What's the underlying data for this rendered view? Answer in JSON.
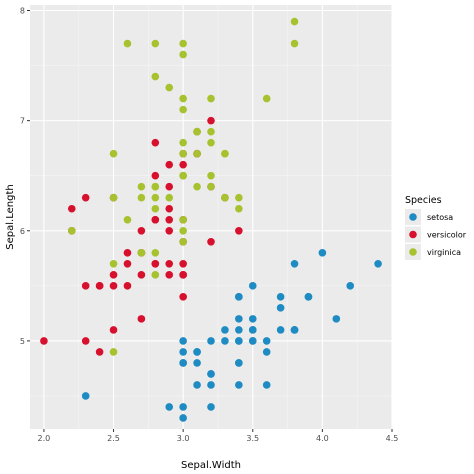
{
  "chart_data": {
    "type": "scatter",
    "xlabel": "Sepal.Width",
    "ylabel": "Sepal.Length",
    "xlim": [
      1.9,
      4.5
    ],
    "ylim": [
      4.2,
      8.05
    ],
    "x_ticks": [
      2.0,
      2.5,
      3.0,
      3.5,
      4.0,
      4.5
    ],
    "x_tick_labels": [
      "2.0",
      "2.5",
      "3.0",
      "3.5",
      "4.0",
      "4.5"
    ],
    "y_ticks": [
      5,
      6,
      7,
      8
    ],
    "y_tick_labels": [
      "5",
      "6",
      "7",
      "8"
    ],
    "grid": true,
    "legend_title": "Species",
    "legend_position": "right",
    "series": [
      {
        "name": "setosa",
        "color": "#1f8bc3",
        "points": [
          [
            3.5,
            5.1
          ],
          [
            3.0,
            4.9
          ],
          [
            3.2,
            4.7
          ],
          [
            3.1,
            4.6
          ],
          [
            3.6,
            5.0
          ],
          [
            3.9,
            5.4
          ],
          [
            3.4,
            4.6
          ],
          [
            3.4,
            5.0
          ],
          [
            2.9,
            4.4
          ],
          [
            3.1,
            4.9
          ],
          [
            3.7,
            5.4
          ],
          [
            3.4,
            4.8
          ],
          [
            3.0,
            4.8
          ],
          [
            3.0,
            4.3
          ],
          [
            4.0,
            5.8
          ],
          [
            4.4,
            5.7
          ],
          [
            3.9,
            5.4
          ],
          [
            3.5,
            5.1
          ],
          [
            3.8,
            5.7
          ],
          [
            3.8,
            5.1
          ],
          [
            3.4,
            5.4
          ],
          [
            3.7,
            5.1
          ],
          [
            3.6,
            4.6
          ],
          [
            3.3,
            5.1
          ],
          [
            3.4,
            4.8
          ],
          [
            3.0,
            5.0
          ],
          [
            3.4,
            5.0
          ],
          [
            3.5,
            5.2
          ],
          [
            3.4,
            5.2
          ],
          [
            3.2,
            4.7
          ],
          [
            3.1,
            4.8
          ],
          [
            3.4,
            5.4
          ],
          [
            4.1,
            5.2
          ],
          [
            4.2,
            5.5
          ],
          [
            3.1,
            4.9
          ],
          [
            3.2,
            5.0
          ],
          [
            3.5,
            5.5
          ],
          [
            3.6,
            4.9
          ],
          [
            3.0,
            4.4
          ],
          [
            3.4,
            5.1
          ],
          [
            3.5,
            5.0
          ],
          [
            2.3,
            4.5
          ],
          [
            3.2,
            4.4
          ],
          [
            3.5,
            5.0
          ],
          [
            3.8,
            5.1
          ],
          [
            3.0,
            4.8
          ],
          [
            3.8,
            5.1
          ],
          [
            3.2,
            4.6
          ],
          [
            3.7,
            5.3
          ],
          [
            3.3,
            5.0
          ]
        ]
      },
      {
        "name": "versicolor",
        "color": "#d7102e",
        "points": [
          [
            3.2,
            7.0
          ],
          [
            3.2,
            6.4
          ],
          [
            3.1,
            6.9
          ],
          [
            2.3,
            5.5
          ],
          [
            2.8,
            6.5
          ],
          [
            2.8,
            5.7
          ],
          [
            3.3,
            6.3
          ],
          [
            2.4,
            4.9
          ],
          [
            2.9,
            6.6
          ],
          [
            2.7,
            5.2
          ],
          [
            2.0,
            5.0
          ],
          [
            3.0,
            5.9
          ],
          [
            2.2,
            6.0
          ],
          [
            2.9,
            6.1
          ],
          [
            2.9,
            5.6
          ],
          [
            3.1,
            6.7
          ],
          [
            3.0,
            5.6
          ],
          [
            2.7,
            5.8
          ],
          [
            2.2,
            6.2
          ],
          [
            2.5,
            5.6
          ],
          [
            3.2,
            5.9
          ],
          [
            2.8,
            6.1
          ],
          [
            2.5,
            6.3
          ],
          [
            2.8,
            6.1
          ],
          [
            2.9,
            6.4
          ],
          [
            3.0,
            6.6
          ],
          [
            2.8,
            6.8
          ],
          [
            3.0,
            6.7
          ],
          [
            2.9,
            6.0
          ],
          [
            2.6,
            5.7
          ],
          [
            2.4,
            5.5
          ],
          [
            2.4,
            5.5
          ],
          [
            2.7,
            5.8
          ],
          [
            2.7,
            6.0
          ],
          [
            3.0,
            5.4
          ],
          [
            3.4,
            6.0
          ],
          [
            3.1,
            6.7
          ],
          [
            2.3,
            6.3
          ],
          [
            3.0,
            5.6
          ],
          [
            2.5,
            5.5
          ],
          [
            2.6,
            5.5
          ],
          [
            3.0,
            6.1
          ],
          [
            2.6,
            5.8
          ],
          [
            2.3,
            5.0
          ],
          [
            2.7,
            5.6
          ],
          [
            3.0,
            5.7
          ],
          [
            2.9,
            5.7
          ],
          [
            2.9,
            6.2
          ],
          [
            2.5,
            5.1
          ],
          [
            2.8,
            5.7
          ]
        ]
      },
      {
        "name": "virginica",
        "color": "#a7c22f",
        "points": [
          [
            3.3,
            6.3
          ],
          [
            2.7,
            5.8
          ],
          [
            3.0,
            7.1
          ],
          [
            2.9,
            6.3
          ],
          [
            3.0,
            6.5
          ],
          [
            3.0,
            7.6
          ],
          [
            2.5,
            4.9
          ],
          [
            2.9,
            7.3
          ],
          [
            2.5,
            6.7
          ],
          [
            3.6,
            7.2
          ],
          [
            3.2,
            6.5
          ],
          [
            2.7,
            6.4
          ],
          [
            3.0,
            6.8
          ],
          [
            2.5,
            5.7
          ],
          [
            2.8,
            5.8
          ],
          [
            3.2,
            6.4
          ],
          [
            3.0,
            6.5
          ],
          [
            3.8,
            7.7
          ],
          [
            2.6,
            7.7
          ],
          [
            2.2,
            6.0
          ],
          [
            3.2,
            6.9
          ],
          [
            2.8,
            5.6
          ],
          [
            2.8,
            7.7
          ],
          [
            2.7,
            6.3
          ],
          [
            3.3,
            6.7
          ],
          [
            3.2,
            7.2
          ],
          [
            2.8,
            6.2
          ],
          [
            3.0,
            6.1
          ],
          [
            2.8,
            6.4
          ],
          [
            3.0,
            7.2
          ],
          [
            2.8,
            7.4
          ],
          [
            3.8,
            7.9
          ],
          [
            2.8,
            6.4
          ],
          [
            2.8,
            6.3
          ],
          [
            2.6,
            6.1
          ],
          [
            3.0,
            7.7
          ],
          [
            3.4,
            6.3
          ],
          [
            3.1,
            6.4
          ],
          [
            3.0,
            6.0
          ],
          [
            3.1,
            6.9
          ],
          [
            3.1,
            6.7
          ],
          [
            3.1,
            6.9
          ],
          [
            2.7,
            5.8
          ],
          [
            3.2,
            6.8
          ],
          [
            3.3,
            6.7
          ],
          [
            3.0,
            6.7
          ],
          [
            2.5,
            6.3
          ],
          [
            3.0,
            6.5
          ],
          [
            3.4,
            6.2
          ],
          [
            3.0,
            5.9
          ]
        ]
      }
    ]
  }
}
